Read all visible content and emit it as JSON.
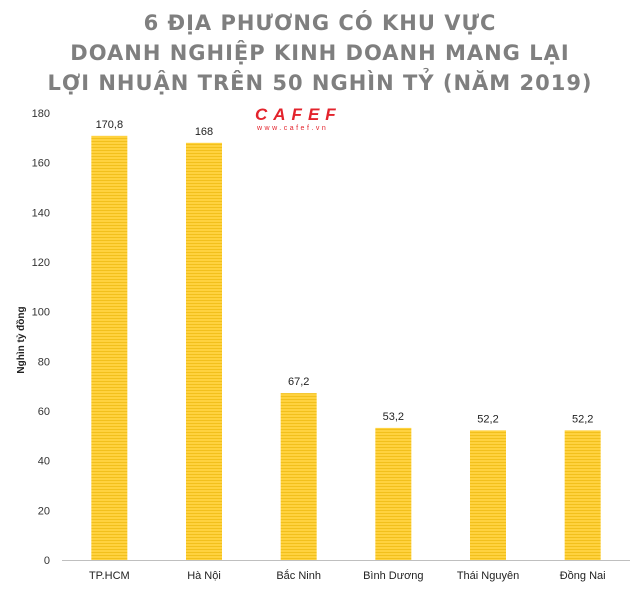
{
  "chart_data": {
    "type": "bar",
    "title_lines": [
      "6 ĐỊA PHƯƠNG CÓ KHU VỰC",
      "DOANH NGHIỆP KINH DOANH MANG LẠI",
      "LỢI NHUẬN TRÊN 50 NGHÌN TỶ (NĂM 2019)"
    ],
    "ylabel": "Nghìn tỷ đồng",
    "xlabel": "",
    "categories": [
      "TP.HCM",
      "Hà Nội",
      "Bắc Ninh",
      "Bình Dương",
      "Thái Nguyên",
      "Đồng Nai"
    ],
    "values": [
      170.8,
      168,
      67.2,
      53.2,
      52.2,
      52.2
    ],
    "value_labels": [
      "170,8",
      "168",
      "67,2",
      "53,2",
      "52,2",
      "52,2"
    ],
    "ylim": [
      0,
      180
    ],
    "yticks": [
      0,
      20,
      40,
      60,
      80,
      100,
      120,
      140,
      160,
      180
    ],
    "grid": false,
    "bar_color": "#ffd23f",
    "bar_stripe_color": "#f2c21f"
  },
  "logo": {
    "main": "CAFEF",
    "sub": "www.cafef.vn"
  }
}
